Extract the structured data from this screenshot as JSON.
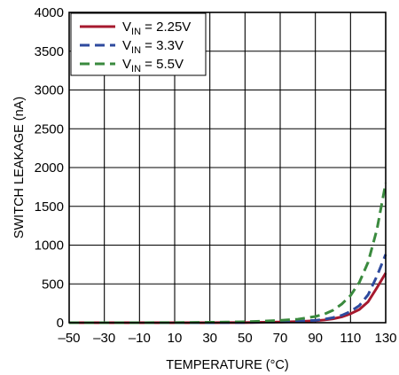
{
  "chart_data": {
    "type": "line",
    "xlabel": "TEMPERATURE (°C)",
    "ylabel": "SWITCH LEAKAGE (nA)",
    "xlim": [
      -50,
      130
    ],
    "ylim": [
      0,
      4000
    ],
    "x_ticks": [
      -50,
      -30,
      -10,
      10,
      30,
      50,
      70,
      90,
      110,
      130
    ],
    "x_tick_labels": [
      "–50",
      "–30",
      "–10",
      "10",
      "30",
      "50",
      "70",
      "90",
      "110",
      "130"
    ],
    "y_ticks": [
      0,
      500,
      1000,
      1500,
      2000,
      2500,
      3000,
      3500,
      4000
    ],
    "y_tick_labels": [
      "0",
      "500",
      "1000",
      "1500",
      "2000",
      "2500",
      "3000",
      "3500",
      "4000"
    ],
    "grid": true,
    "legend_position": "top-left",
    "series": [
      {
        "name": "V",
        "name_sub": "IN",
        "name_suffix": " = 2.25V",
        "color": "#a6192e",
        "dash": "solid",
        "x": [
          -50,
          -30,
          -10,
          10,
          30,
          50,
          70,
          80,
          90,
          95,
          100,
          105,
          110,
          115,
          120,
          125,
          130
        ],
        "y": [
          0,
          0,
          0,
          0,
          0,
          2,
          8,
          15,
          25,
          35,
          50,
          75,
          115,
          170,
          270,
          450,
          640
        ]
      },
      {
        "name": "V",
        "name_sub": "IN",
        "name_suffix": " = 3.3V",
        "color": "#2e4a9e",
        "dash": "dashed",
        "x": [
          -50,
          -30,
          -10,
          10,
          30,
          50,
          70,
          80,
          90,
          95,
          100,
          105,
          110,
          115,
          120,
          125,
          130
        ],
        "y": [
          0,
          0,
          0,
          0,
          0,
          3,
          10,
          18,
          30,
          45,
          65,
          95,
          145,
          220,
          360,
          600,
          880
        ]
      },
      {
        "name": "V",
        "name_sub": "IN",
        "name_suffix": " = 5.5V",
        "color": "#3a8a3e",
        "dash": "dashed",
        "x": [
          -50,
          -30,
          -10,
          10,
          30,
          50,
          60,
          70,
          80,
          90,
          95,
          100,
          105,
          110,
          115,
          120,
          125,
          130
        ],
        "y": [
          0,
          0,
          0,
          2,
          5,
          12,
          20,
          30,
          45,
          80,
          110,
          160,
          240,
          350,
          520,
          780,
          1200,
          1800
        ]
      }
    ]
  }
}
